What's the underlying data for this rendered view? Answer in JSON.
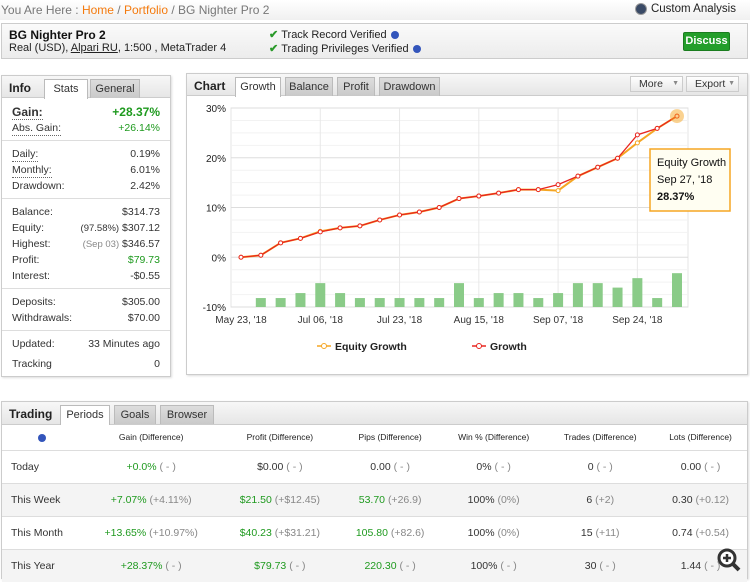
{
  "breadcrumb": {
    "prefix": "You Are Here :",
    "home": "Home",
    "portfolio": "Portfolio",
    "current": "BG Nighter Pro 2",
    "custom_analysis": "Custom Analysis"
  },
  "header": {
    "title": "BG Nighter Pro 2",
    "sub_pre": "Real (USD),",
    "broker": "Alpari RU",
    "sub_post": ", 1:500 , MetaTrader 4",
    "verified1": "Track Record Verified",
    "verified2": "Trading Privileges Verified",
    "discuss": "Discuss"
  },
  "info": {
    "title": "Info",
    "tabs": [
      "Stats",
      "General"
    ],
    "gain_label": "Gain:",
    "gain": "+28.37%",
    "abs_label": "Abs. Gain:",
    "abs": "+26.14%",
    "daily_label": "Daily:",
    "daily": "0.19%",
    "monthly_label": "Monthly:",
    "monthly": "6.01%",
    "dd_label": "Drawdown:",
    "dd": "2.42%",
    "balance_label": "Balance:",
    "balance": "$314.73",
    "equity_label": "Equity:",
    "equity_pct": "(97.58%)",
    "equity": "$307.12",
    "highest_label": "Highest:",
    "highest_date": "(Sep 03)",
    "highest": "$346.57",
    "profit_label": "Profit:",
    "profit": "$79.73",
    "interest_label": "Interest:",
    "interest": "-$0.55",
    "deposits_label": "Deposits:",
    "deposits": "$305.00",
    "withdrawals_label": "Withdrawals:",
    "withdrawals": "$70.00",
    "updated_label": "Updated:",
    "updated": "33 Minutes ago",
    "tracking_label": "Tracking",
    "tracking": "0"
  },
  "chart": {
    "title": "Chart",
    "tabs": [
      "Growth",
      "Balance",
      "Profit",
      "Drawdown"
    ],
    "more": "More",
    "export": "Export"
  },
  "chart_data": {
    "type": "line",
    "ylim": [
      -10,
      30
    ],
    "yticks": [
      "30%",
      "20%",
      "10%",
      "0%",
      "-10%"
    ],
    "ytick_values": [
      30,
      20,
      10,
      0,
      -10
    ],
    "xticks": [
      "May 23, '18",
      "Jul 06, '18",
      "Jul 23, '18",
      "Aug 15, '18",
      "Sep 07, '18",
      "Sep 24, '18"
    ],
    "series": [
      {
        "name": "Equity Growth",
        "color": "#f5a623",
        "values": [
          0,
          0.4,
          2.9,
          3.8,
          5.2,
          5.9,
          6.3,
          7.5,
          8.5,
          9.1,
          10.0,
          11.8,
          12.3,
          12.9,
          13.6,
          13.6,
          13.4,
          16.3,
          18.1,
          19.9,
          23.0,
          25.9,
          28.37
        ]
      },
      {
        "name": "Growth",
        "color": "#e8251f",
        "values": [
          0,
          0.4,
          2.9,
          3.8,
          5.1,
          5.9,
          6.3,
          7.5,
          8.5,
          9.1,
          10.0,
          11.8,
          12.3,
          12.9,
          13.6,
          13.6,
          14.6,
          16.3,
          18.1,
          19.9,
          24.6,
          25.9,
          28.37
        ]
      }
    ],
    "bars": {
      "color": "#8acb88",
      "values": [
        -8.2,
        -8.2,
        -7.2,
        -5.2,
        -7.2,
        -8.2,
        -8.2,
        -8.2,
        -8.2,
        -8.2,
        -5.2,
        -8.2,
        -7.2,
        -7.2,
        -8.2,
        -7.2,
        -5.2,
        -5.2,
        -6.1,
        -4.2,
        -8.2,
        -3.2
      ]
    },
    "tooltip": {
      "series": "Equity Growth",
      "date": "Sep 27, '18",
      "value": "28.37%"
    }
  },
  "trading": {
    "title": "Trading",
    "tabs": [
      "Periods",
      "Goals",
      "Browser"
    ],
    "columns": [
      "Gain (Difference)",
      "Profit (Difference)",
      "Pips (Difference)",
      "Win % (Difference)",
      "Trades (Difference)",
      "Lots (Difference)"
    ],
    "rows": [
      {
        "period": "Today",
        "cells": [
          [
            "+0.0%",
            "( - )"
          ],
          [
            "$0.00",
            "( - )"
          ],
          [
            "0.00",
            "( - )"
          ],
          [
            "0%",
            "( - )"
          ],
          [
            "0",
            "( - )"
          ],
          [
            "0.00",
            "( - )"
          ]
        ]
      },
      {
        "period": "This Week",
        "cells": [
          [
            "+7.07%",
            "(+4.11%)"
          ],
          [
            "$21.50",
            "(+$12.45)"
          ],
          [
            "53.70",
            "(+26.9)"
          ],
          [
            "100%",
            "(0%)"
          ],
          [
            "6",
            "(+2)"
          ],
          [
            "0.30",
            "(+0.12)"
          ]
        ]
      },
      {
        "period": "This Month",
        "cells": [
          [
            "+13.65%",
            "(+10.97%)"
          ],
          [
            "$40.23",
            "(+$31.21)"
          ],
          [
            "105.80",
            "(+82.6)"
          ],
          [
            "100%",
            "(0%)"
          ],
          [
            "15",
            "(+11)"
          ],
          [
            "0.74",
            "(+0.54)"
          ]
        ]
      },
      {
        "period": "This Year",
        "cells": [
          [
            "+28.37%",
            "( - )"
          ],
          [
            "$79.73",
            "( - )"
          ],
          [
            "220.30",
            "( - )"
          ],
          [
            "100%",
            "( - )"
          ],
          [
            "30",
            "( - )"
          ],
          [
            "1.44",
            "( - )"
          ]
        ]
      }
    ]
  }
}
